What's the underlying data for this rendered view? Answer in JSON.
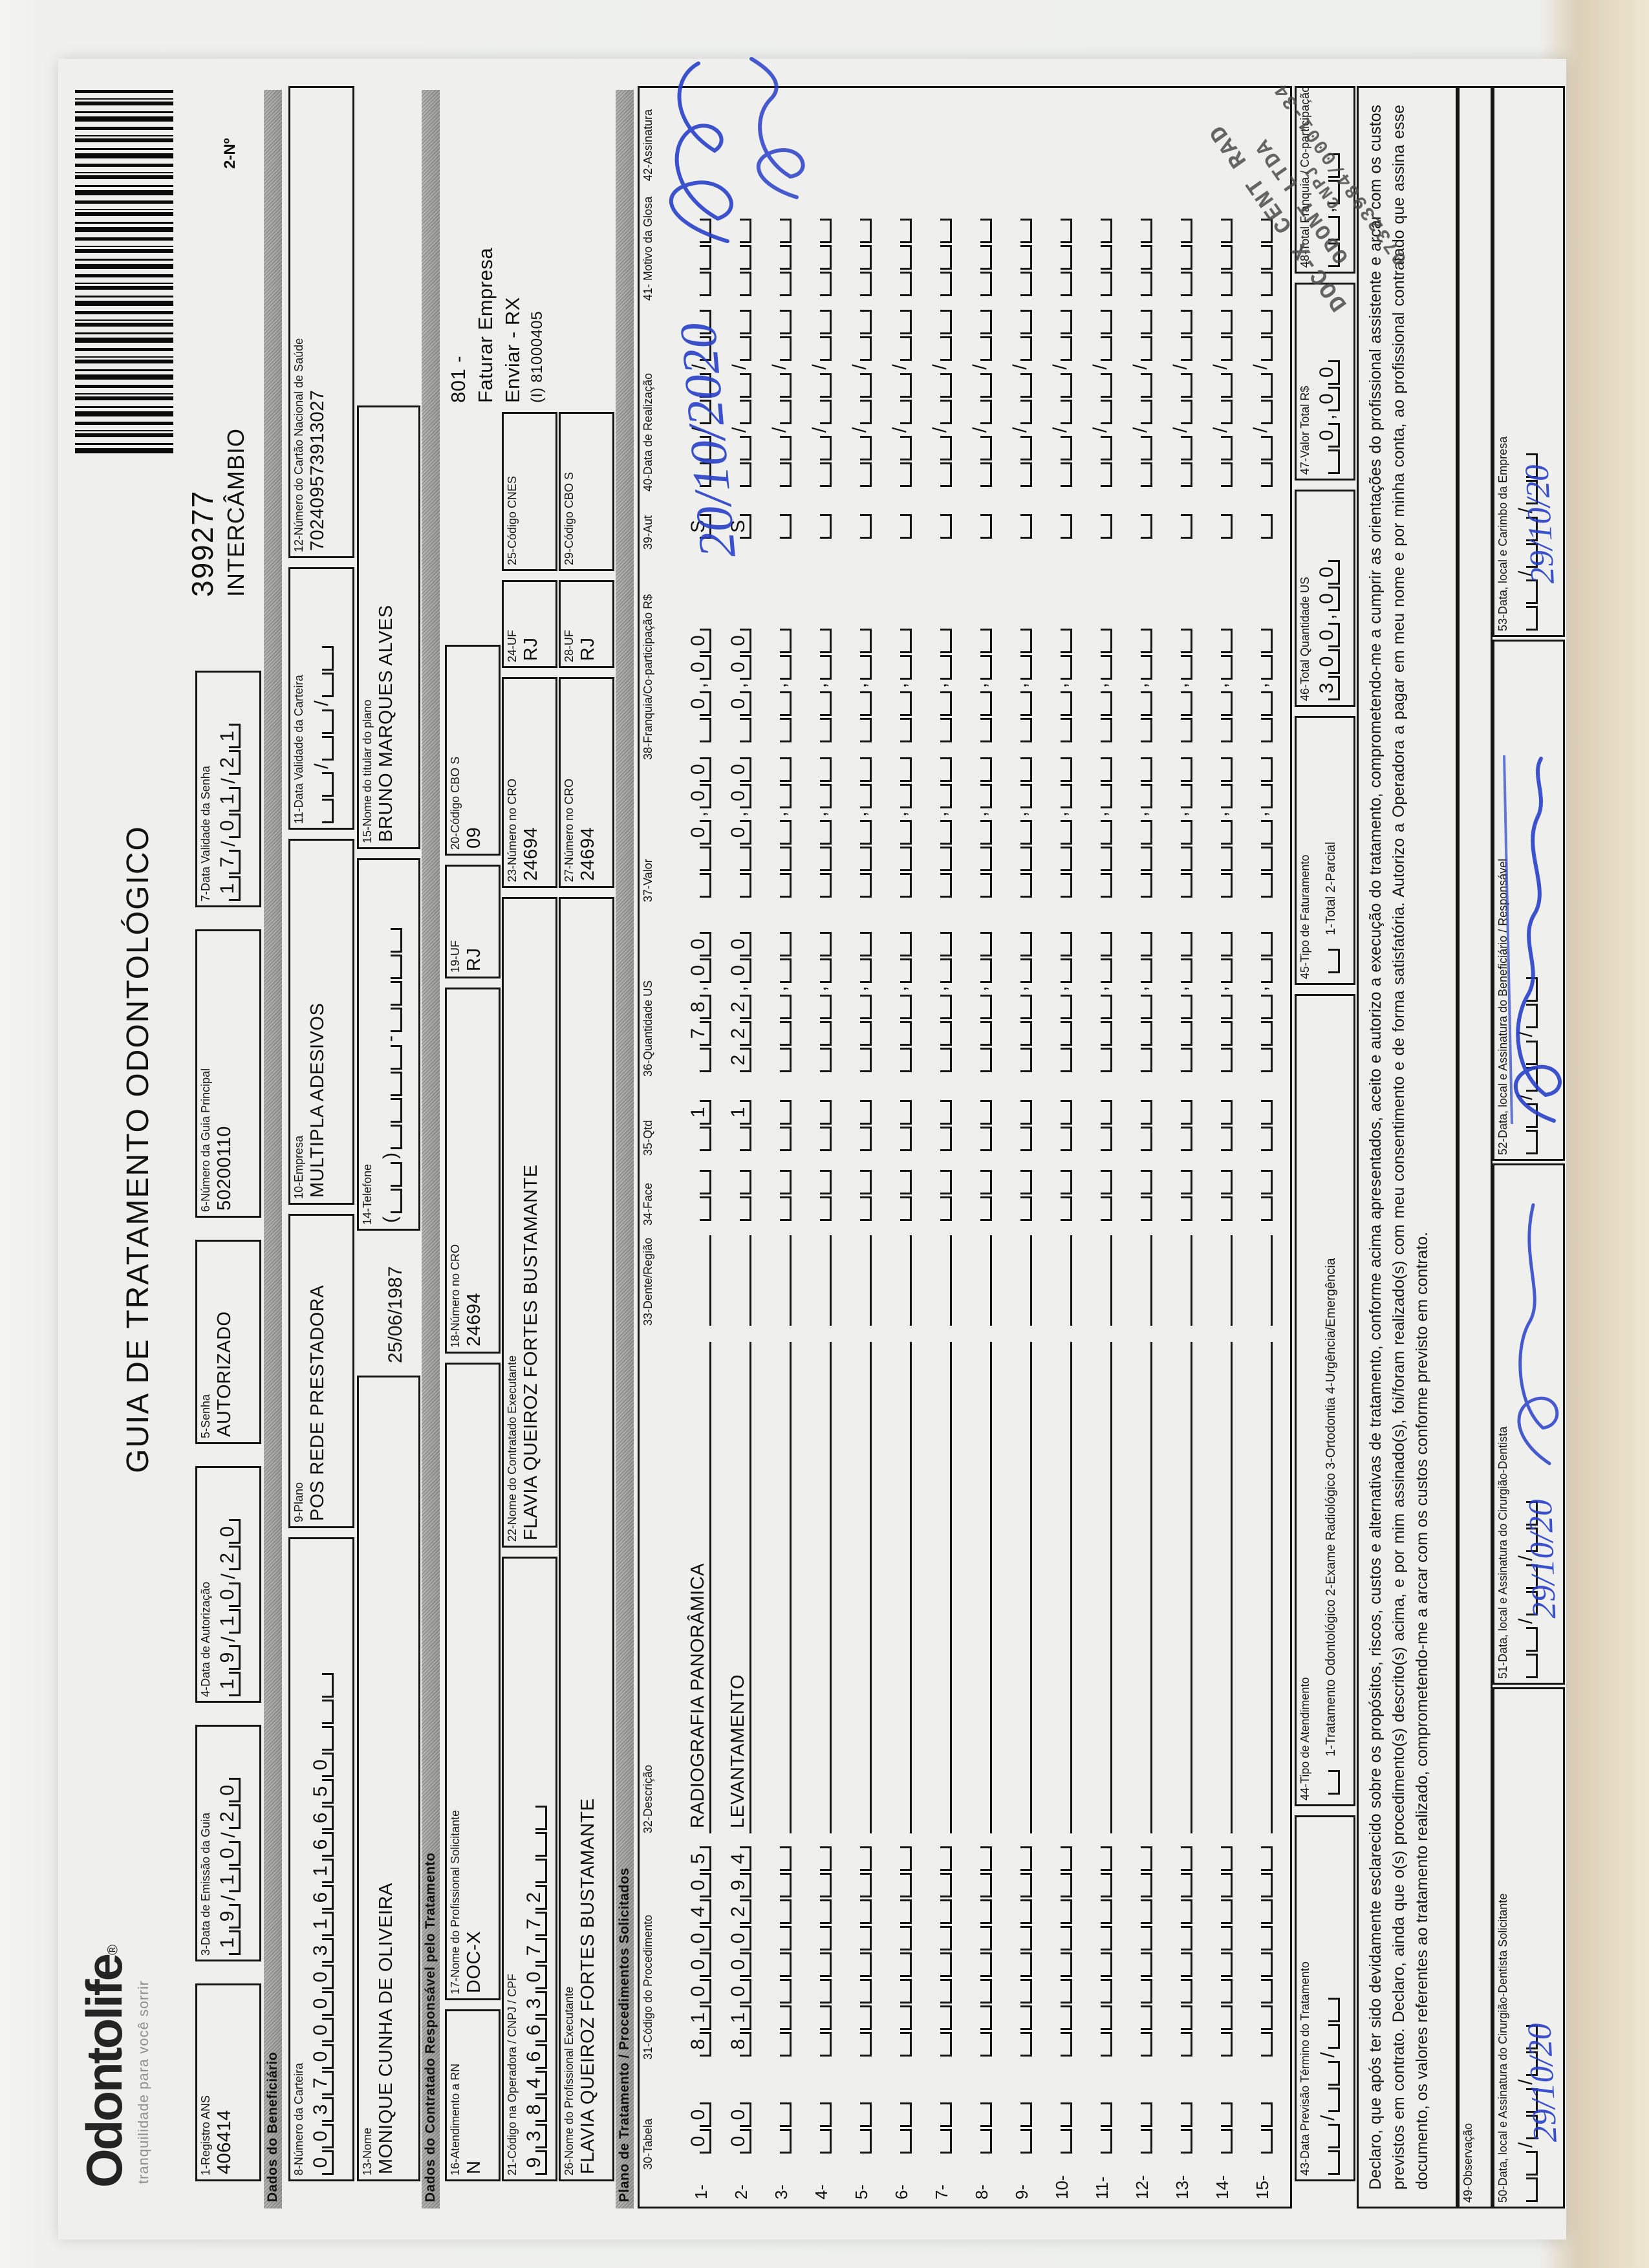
{
  "colors": {
    "paper": "#eff0ee",
    "ink": "#151515",
    "handwriting_blue": "#2840c8",
    "stamp_gray": "#474747",
    "section_bar_gray": "#a8a8a6",
    "scanner_edge_beige": "#dcd0b6"
  },
  "header": {
    "logo_brand": "Odontolife",
    "logo_reg": "®",
    "logo_tagline": "tranquilidade para você sorrir",
    "title": "GUIA DE TRATAMENTO ODONTOLÓGICO",
    "field2_label": "2-Nº",
    "guide_number": "399277",
    "guide_type": "INTERCÂMBIO",
    "barcode": "barcode"
  },
  "sections": {
    "beneficiario": "Dados do Beneficiário",
    "contratado": "Dados do Contratado Responsável pelo Tratamento",
    "plano": "Plano de Tratamento / Procedimentos Solicitados"
  },
  "fields": {
    "f1": {
      "label": "1-Registro ANS",
      "value": "406414"
    },
    "f3": {
      "label": "3-Data de Emissão da Guia",
      "value": "19/10/20"
    },
    "f4": {
      "label": "4-Data de Autorização",
      "value": "19/10/20"
    },
    "f5": {
      "label": "5-Senha",
      "value": "AUTORIZADO"
    },
    "f6": {
      "label": "6-Número da Guia Principal",
      "value": "50200110"
    },
    "f7": {
      "label": "7-Data Validade da Senha",
      "value": "17/01/21"
    },
    "f8": {
      "label": "8-Número da Carteira",
      "value": "0037000031616650   "
    },
    "f9": {
      "label": "9-Plano",
      "value": "POS REDE PRESTADORA"
    },
    "f10": {
      "label": "10-Empresa",
      "value": "MULTIPLA ADESIVOS"
    },
    "f11": {
      "label": "11-Data Validade da Carteira",
      "value": "  /  /  "
    },
    "f12": {
      "label": "12-Número do Cartão Nacional de Saúde",
      "value": "702409573913027"
    },
    "f13": {
      "label": "13-Nome",
      "value": "MONIQUE CUNHA DE OLIVEIRA"
    },
    "birth_date": "25/06/1987",
    "f14": {
      "label": "14-Telefone",
      "value": "(  )    -    "
    },
    "f15": {
      "label": "15-Nome do titular do plano",
      "value": "BRUNO MARQUES ALVES"
    },
    "f16": {
      "label": "16-Atendimento a RN",
      "value": "N"
    },
    "f17": {
      "label": "17-Nome do Profissional Solicitante",
      "value": "DOC-X"
    },
    "f18": {
      "label": "18-Número no CRO",
      "value": "24694"
    },
    "f19": {
      "label": "19-UF",
      "value": "RJ"
    },
    "f20": {
      "label": "20-Código CBO S",
      "value": "09"
    },
    "f21": {
      "label": "21-Código na Operadora / CNPJ / CPF",
      "value": "93846630772   "
    },
    "f22": {
      "label": "22-Nome do Contratado Executante",
      "value": "FLAVIA QUEIROZ FORTES BUSTAMANTE"
    },
    "f23": {
      "label": "23-Número no CRO",
      "value": "24694"
    },
    "f24": {
      "label": "24-UF",
      "value": "RJ"
    },
    "f25": {
      "label": "25-Código CNES",
      "value": ""
    },
    "f26": {
      "label": "26-Nome do Profissional Executante",
      "value": "FLAVIA QUEIROZ FORTES BUSTAMANTE"
    },
    "f27": {
      "label": "27-Número no CRO",
      "value": "24694"
    },
    "f28": {
      "label": "28-UF",
      "value": "RJ"
    },
    "f29": {
      "label": "29-Código CBO S",
      "value": ""
    },
    "f43": {
      "label": "43-Data Previsão Término do Tratamento",
      "value": "  /  /  "
    },
    "f44": {
      "label": "44-Tipo de Atendimento",
      "value": " ",
      "options": "1-Tratamento Odontológico  2-Exame Radiológico  3-Ortodontia  4-Urgência/Emergência"
    },
    "f45": {
      "label": "45-Tipo de Faturamento",
      "value": " ",
      "options": "1-Total  2-Parcial"
    },
    "f46": {
      "label": "46-Total Quantidade US",
      "value": "300,00"
    },
    "f47": {
      "label": "47-Valor Total R$",
      "value": " 0,00"
    },
    "f48": {
      "label": "48-Total Franquia / Co-participação R$",
      "value": "  ,  "
    },
    "f49": {
      "label": "49-Observação"
    },
    "f50": {
      "label": "50-Data, local e Assinatura do Cirurgião-Dentista Solicitante",
      "value": "  /  /  "
    },
    "f51": {
      "label": "51-Data, local e Assinatura do Cirurgião-Dentista",
      "value": "  /  /  "
    },
    "f52": {
      "label": "52-Data, local e Assinatura do Beneficiário / Responsável",
      "value": "  /  /  "
    },
    "f53": {
      "label": "53-Data, local e Carimbo da Empresa",
      "value": "  /  /  "
    }
  },
  "authorization_note": {
    "lines": [
      "801 -",
      "Faturar Empresa",
      "Enviar - RX",
      "(I) 81000405"
    ]
  },
  "table": {
    "headers": [
      "30-Tabela",
      "31-Código do Procedimento",
      "32-Descrição",
      "33-Dente/Região",
      "34-Face",
      "35-Qtd",
      "36-Quantidade US",
      "37-Valor",
      "38-Franquia/Co-participação R$",
      "39-Aut",
      "40-Data de Realização",
      "41- Motivo da Glosa",
      "42-Assinatura"
    ],
    "rows": [
      {
        "n": "1",
        "tabela": "00",
        "codigo": "81000405",
        "descricao": "RADIOGRAFIA PANORÂMICA",
        "face": "  ",
        "qtd": " 1",
        "us": " 78,00",
        "valor": "  0,00",
        "franquia": " 0,00",
        "aut": "S",
        "data": "  /  /  ",
        "motivo": "   "
      },
      {
        "n": "2",
        "tabela": "00",
        "codigo": "81000294",
        "descricao": "LEVANTAMENTO",
        "face": "  ",
        "qtd": " 1",
        "us": "222,00",
        "valor": "  0,00",
        "franquia": " 0,00",
        "aut": "S",
        "data": "  /  /  ",
        "motivo": "   "
      },
      {
        "n": "3"
      },
      {
        "n": "4"
      },
      {
        "n": "5"
      },
      {
        "n": "6"
      },
      {
        "n": "7"
      },
      {
        "n": "8"
      },
      {
        "n": "9"
      },
      {
        "n": "10"
      },
      {
        "n": "11"
      },
      {
        "n": "12"
      },
      {
        "n": "13"
      },
      {
        "n": "14"
      },
      {
        "n": "15"
      }
    ]
  },
  "declaration": "Declaro, que após ter sido devidamente esclarecido sobre os propósitos, riscos, custos e alternativas de tratamento, conforme acima apresentados, aceito e autorizo a execução do tratamento, comprometendo-me a cumprir as orientações do profissional assistente e arcar com os custos previstos em contrato. Declaro, ainda que o(s) procedimento(s) descrito(s) acima, e por mim assinado(s), foi/foram realizado(s) com meu consentimento e de forma satisfatória. Autorizo a Operadora a pagar em meu nome e por minha conta, ao profissional contratado que assina esse documento, os valores referentes ao tratamento realizado, comprometendo-me a arcar com os custos conforme previsto em contrato.",
  "handwriting": {
    "table_date": "20/10/2020",
    "date_50": "29/10/20",
    "date_51": "29/10/20",
    "date_53": "29/10/20"
  },
  "stamp": {
    "lines": [
      "DOC-X CENT RAD",
      "ODONT LTDA",
      "CNPJ",
      "07323984/0001-34"
    ]
  }
}
